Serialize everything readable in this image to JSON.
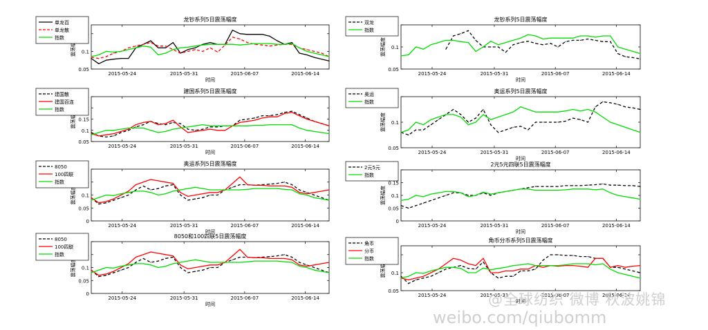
{
  "watermark": {
    "line1": "@全球纺织 微博 秋波姚锦",
    "line2": "weibo.com/qiubomm"
  },
  "chart_data": [
    {
      "type": "line",
      "title": "龙钞系列5日震荡幅度",
      "xlabel": "时间",
      "ylabel": "震荡幅度",
      "ylim": [
        0.05,
        0.175
      ],
      "yticks": [
        0.05,
        0.1,
        0.15
      ],
      "ytick_labels": [
        "0.05",
        "0.1",
        "0.15"
      ],
      "xticks": [
        "2015-05-24",
        "2015-05-31",
        "2015-06-07",
        "2015-06-14"
      ],
      "legend": "top-left-outside",
      "series": [
        {
          "name": "单龙百",
          "color": "#000000",
          "dash": "solid",
          "values": [
            0.08,
            0.065,
            0.075,
            0.078,
            0.08,
            0.08,
            0.11,
            0.12,
            0.13,
            0.11,
            0.11,
            0.125,
            0.095,
            0.105,
            0.11,
            0.12,
            0.125,
            0.12,
            0.12,
            0.16,
            0.15,
            0.148,
            0.148,
            0.148,
            0.143,
            0.13,
            0.12,
            0.125,
            0.095,
            0.09,
            0.083,
            0.078,
            0.073
          ]
        },
        {
          "name": "单龙散",
          "color": "#ff0000",
          "dash": "dashed",
          "values": [
            0.083,
            0.08,
            0.085,
            0.095,
            0.1,
            0.11,
            0.115,
            0.12,
            0.125,
            0.115,
            0.115,
            0.105,
            0.095,
            0.1,
            0.105,
            0.1,
            0.11,
            0.098,
            0.118,
            0.14,
            0.135,
            0.125,
            0.12,
            0.118,
            0.115,
            0.118,
            0.12,
            0.12,
            0.11,
            0.105,
            0.1,
            0.095,
            0.085
          ]
        },
        {
          "name": "指数",
          "color": "#00dd00",
          "dash": "solid",
          "values": [
            0.085,
            0.09,
            0.1,
            0.098,
            0.1,
            0.105,
            0.11,
            0.115,
            0.112,
            0.09,
            0.095,
            0.105,
            0.11,
            0.112,
            0.115,
            0.118,
            0.12,
            0.12,
            0.12,
            0.12,
            0.118,
            0.12,
            0.122,
            0.122,
            0.122,
            0.12,
            0.12,
            0.122,
            0.11,
            0.1,
            0.095,
            0.09,
            0.085
          ]
        }
      ]
    },
    {
      "type": "line",
      "title": "龙钞系列5日震荡幅度",
      "xlabel": "时间",
      "ylabel": "震荡幅度",
      "ylim": [
        0.05,
        0.15
      ],
      "yticks": [
        0.05,
        0.1,
        0.15
      ],
      "ytick_labels": [
        "0.05",
        "0.1",
        "0.15"
      ],
      "xticks": [
        "2015-05-24",
        "2015-05-31",
        "2015-06-07",
        "2015-06-14"
      ],
      "legend": "top-left-outside",
      "series": [
        {
          "name": "双龙",
          "color": "#000000",
          "dash": "dashed",
          "values": [
            null,
            null,
            null,
            null,
            null,
            null,
            0.095,
            0.125,
            0.13,
            0.137,
            0.115,
            0.1,
            0.1,
            0.1,
            0.088,
            0.105,
            0.11,
            0.113,
            0.108,
            0.105,
            0.108,
            0.1,
            0.112,
            0.115,
            0.115,
            0.118,
            0.115,
            0.112,
            0.112,
            0.085,
            0.078,
            0.076,
            0.073
          ]
        },
        {
          "name": "指数",
          "color": "#00dd00",
          "dash": "solid",
          "values": [
            0.08,
            0.082,
            0.1,
            0.095,
            0.105,
            0.11,
            0.115,
            0.115,
            0.112,
            0.11,
            0.09,
            0.1,
            0.113,
            0.105,
            0.11,
            0.115,
            0.12,
            0.128,
            0.125,
            0.118,
            0.12,
            0.12,
            0.12,
            0.12,
            0.125,
            0.125,
            0.122,
            0.125,
            0.125,
            0.1,
            0.095,
            0.09,
            0.085
          ]
        }
      ]
    },
    {
      "type": "line",
      "title": "建国系列5日震荡幅度",
      "xlabel": "时间",
      "ylabel": "震荡幅度",
      "ylim": [
        0.05,
        0.25
      ],
      "yticks": [
        0.05,
        0.1,
        0.15,
        0.2,
        0.25
      ],
      "ytick_labels": [
        "0.05",
        "0.1",
        "0.15",
        "0.2",
        "0.25"
      ],
      "xticks": [
        "2015-05-24",
        "2015-05-31",
        "2015-06-07",
        "2015-06-14"
      ],
      "legend": "top-left-outside",
      "series": [
        {
          "name": "建国散",
          "color": "#000000",
          "dash": "dashed",
          "values": [
            0.09,
            0.075,
            0.07,
            0.075,
            0.09,
            0.1,
            0.115,
            0.125,
            0.14,
            0.13,
            0.125,
            0.135,
            0.13,
            0.105,
            0.1,
            0.105,
            0.115,
            0.115,
            0.12,
            0.12,
            0.145,
            0.15,
            0.155,
            0.165,
            0.165,
            0.17,
            0.18,
            0.185,
            0.17,
            0.155,
            0.14,
            0.13,
            0.12
          ]
        },
        {
          "name": "建国百连",
          "color": "#ff0000",
          "dash": "solid",
          "values": [
            0.085,
            0.075,
            0.08,
            0.085,
            0.095,
            0.105,
            0.125,
            0.135,
            0.14,
            0.125,
            0.13,
            0.145,
            0.115,
            0.09,
            0.095,
            0.1,
            0.105,
            0.1,
            0.1,
            0.12,
            0.135,
            0.14,
            0.145,
            0.155,
            0.16,
            0.16,
            0.175,
            0.18,
            0.165,
            0.15,
            0.14,
            0.13,
            0.12
          ]
        },
        {
          "name": "指数",
          "color": "#00dd00",
          "dash": "solid",
          "values": [
            0.08,
            0.09,
            0.1,
            0.1,
            0.105,
            0.11,
            0.11,
            0.11,
            0.1,
            0.09,
            0.095,
            0.105,
            0.11,
            0.115,
            0.12,
            0.125,
            0.12,
            0.12,
            0.12,
            0.12,
            0.12,
            0.12,
            0.122,
            0.122,
            0.125,
            0.125,
            0.125,
            0.125,
            0.11,
            0.1,
            0.095,
            0.09,
            0.085
          ]
        }
      ]
    },
    {
      "type": "line",
      "title": "奥运系列5日震荡幅度",
      "xlabel": "时间",
      "ylabel": "震荡幅度",
      "ylim": [
        0.05,
        0.15
      ],
      "yticks": [
        0.05,
        0.1,
        0.15
      ],
      "ytick_labels": [
        "0.05",
        "0.1",
        "0.15"
      ],
      "xticks": [
        "2015-05-24",
        "2015-05-31",
        "2015-06-07",
        "2015-06-14"
      ],
      "legend": "top-left-outside",
      "series": [
        {
          "name": "奥运",
          "color": "#000000",
          "dash": "dashed",
          "values": [
            0.08,
            0.075,
            0.085,
            0.085,
            0.095,
            0.105,
            0.115,
            0.125,
            0.115,
            0.1,
            0.108,
            0.125,
            0.095,
            0.08,
            0.085,
            0.09,
            0.092,
            0.085,
            0.1,
            0.1,
            0.1,
            0.1,
            0.102,
            0.108,
            0.105,
            0.1,
            0.13,
            0.14,
            0.138,
            0.135,
            0.13,
            0.128,
            0.125
          ]
        },
        {
          "name": "指数",
          "color": "#00dd00",
          "dash": "solid",
          "values": [
            0.08,
            0.085,
            0.1,
            0.095,
            0.105,
            0.11,
            0.115,
            0.115,
            0.11,
            0.095,
            0.1,
            0.115,
            0.105,
            0.11,
            0.115,
            0.12,
            0.13,
            0.125,
            0.12,
            0.12,
            0.12,
            0.12,
            0.122,
            0.125,
            0.122,
            0.125,
            0.12,
            0.11,
            0.1,
            0.095,
            0.09,
            0.085,
            0.08
          ]
        }
      ]
    },
    {
      "type": "line",
      "title": "奥运系列5日震荡幅度",
      "xlabel": "时间",
      "ylabel": "震荡幅度",
      "ylim": [
        0.0,
        0.2
      ],
      "yticks": [
        0.0,
        0.05,
        0.1,
        0.15,
        0.2
      ],
      "ytick_labels": [
        "0",
        "0.05",
        "0.1",
        "0.15",
        "0.2"
      ],
      "xticks": [
        "2015-05-24",
        "2015-05-31",
        "2015-06-07",
        "2015-06-14"
      ],
      "legend": "top-left-outside",
      "series": [
        {
          "name": "8050",
          "color": "#000000",
          "dash": "dashed",
          "values": [
            0.09,
            0.065,
            0.07,
            0.08,
            0.09,
            0.1,
            0.12,
            0.135,
            0.12,
            0.125,
            0.135,
            0.14,
            0.1,
            0.08,
            0.085,
            0.09,
            0.1,
            0.1,
            0.12,
            0.13,
            0.14,
            0.14,
            0.138,
            0.14,
            0.142,
            0.145,
            0.15,
            0.14,
            0.12,
            0.11,
            0.1,
            0.09,
            0.08
          ]
        },
        {
          "name": "100四联",
          "color": "#ff0000",
          "dash": "solid",
          "values": [
            0.09,
            0.07,
            0.075,
            0.085,
            0.1,
            0.115,
            0.14,
            0.15,
            0.16,
            0.155,
            0.15,
            0.145,
            0.11,
            0.095,
            0.1,
            0.105,
            0.11,
            0.11,
            0.12,
            0.145,
            0.17,
            0.14,
            0.138,
            0.138,
            0.135,
            0.135,
            0.135,
            0.13,
            0.11,
            0.105,
            0.11,
            0.115,
            0.12
          ]
        },
        {
          "name": "指数",
          "color": "#00dd00",
          "dash": "solid",
          "values": [
            0.08,
            0.09,
            0.1,
            0.098,
            0.105,
            0.11,
            0.115,
            0.115,
            0.11,
            0.1,
            0.105,
            0.115,
            0.12,
            0.125,
            0.13,
            0.125,
            0.12,
            0.12,
            0.12,
            0.12,
            0.12,
            0.122,
            0.125,
            0.125,
            0.125,
            0.125,
            0.122,
            0.12,
            0.105,
            0.1,
            0.09,
            0.085,
            0.08
          ]
        }
      ]
    },
    {
      "type": "line",
      "title": "2元5元四联5日震荡幅度",
      "xlabel": "时间",
      "ylabel": "震荡幅度",
      "ylim": [
        0.0,
        0.2
      ],
      "yticks": [
        0.0,
        0.05,
        0.1,
        0.15,
        0.2
      ],
      "ytick_labels": [
        "0",
        "0.05",
        "0.1",
        "0.15",
        "0.2"
      ],
      "xticks": [
        "2015-05-24",
        "2015-05-31",
        "2015-06-07",
        "2015-06-14"
      ],
      "legend": "top-left-outside",
      "series": [
        {
          "name": "2元5元",
          "color": "#000000",
          "dash": "dashed",
          "values": [
            0.06,
            0.05,
            0.06,
            0.07,
            0.08,
            0.09,
            0.1,
            0.11,
            0.11,
            0.1,
            0.1,
            0.11,
            0.1,
            0.11,
            0.115,
            0.12,
            0.125,
            0.13,
            0.135,
            0.135,
            0.135,
            0.135,
            0.138,
            0.138,
            0.138,
            0.14,
            0.142,
            0.145,
            0.14,
            0.14,
            0.138,
            0.138,
            0.135
          ]
        },
        {
          "name": "指数",
          "color": "#00dd00",
          "dash": "solid",
          "values": [
            0.08,
            0.085,
            0.1,
            0.095,
            0.105,
            0.11,
            0.115,
            0.115,
            0.11,
            0.095,
            0.1,
            0.113,
            0.105,
            0.11,
            0.115,
            0.12,
            0.125,
            0.125,
            0.12,
            0.12,
            0.12,
            0.12,
            0.122,
            0.125,
            0.125,
            0.125,
            0.122,
            0.125,
            0.11,
            0.1,
            0.095,
            0.09,
            0.085
          ]
        }
      ]
    },
    {
      "type": "line",
      "title": "8050和100四联5日震荡幅度",
      "xlabel": "时间",
      "ylabel": "震荡幅度",
      "ylim": [
        0.0,
        0.2
      ],
      "yticks": [
        0.0,
        0.05,
        0.1,
        0.15,
        0.2
      ],
      "ytick_labels": [
        "0",
        "0.05",
        "0.1",
        "0.15",
        "0.2"
      ],
      "xticks": [
        "2015-05-24",
        "2015-05-31",
        "2015-06-07",
        "2015-06-14"
      ],
      "legend": "top-left-outside",
      "series": [
        {
          "name": "8050",
          "color": "#000000",
          "dash": "dashed",
          "values": [
            0.09,
            0.065,
            0.07,
            0.08,
            0.09,
            0.1,
            0.12,
            0.135,
            0.12,
            0.125,
            0.135,
            0.14,
            0.1,
            0.08,
            0.085,
            0.09,
            0.1,
            0.1,
            0.12,
            0.13,
            0.14,
            0.14,
            0.138,
            0.14,
            0.142,
            0.145,
            0.15,
            0.14,
            0.12,
            0.11,
            0.1,
            0.09,
            0.08
          ]
        },
        {
          "name": "100四联",
          "color": "#ff0000",
          "dash": "solid",
          "values": [
            0.09,
            0.07,
            0.075,
            0.085,
            0.1,
            0.115,
            0.14,
            0.15,
            0.16,
            0.155,
            0.15,
            0.145,
            0.11,
            0.095,
            0.1,
            0.105,
            0.11,
            0.11,
            0.12,
            0.145,
            0.17,
            0.14,
            0.138,
            0.138,
            0.135,
            0.135,
            0.135,
            0.13,
            0.11,
            0.105,
            0.11,
            0.115,
            0.12
          ]
        },
        {
          "name": "指数",
          "color": "#00dd00",
          "dash": "solid",
          "values": [
            0.08,
            0.09,
            0.1,
            0.098,
            0.105,
            0.11,
            0.115,
            0.115,
            0.11,
            0.1,
            0.105,
            0.115,
            0.12,
            0.125,
            0.13,
            0.125,
            0.12,
            0.12,
            0.12,
            0.12,
            0.12,
            0.122,
            0.125,
            0.125,
            0.125,
            0.125,
            0.122,
            0.12,
            0.105,
            0.1,
            0.09,
            0.085,
            0.08
          ]
        }
      ]
    },
    {
      "type": "line",
      "title": "角币分币系列5日震荡幅度",
      "xlabel": "时间",
      "ylabel": "震荡幅度",
      "ylim": [
        0.05,
        0.175
      ],
      "yticks": [
        0.05,
        0.1,
        0.15
      ],
      "ytick_labels": [
        "0.05",
        "0.1",
        "0.15"
      ],
      "xticks": [
        "2015-05-24",
        "2015-05-31",
        "2015-06-07",
        "2015-06-14"
      ],
      "legend": "top-left-outside",
      "series": [
        {
          "name": "角币",
          "color": "#000000",
          "dash": "dashed",
          "values": [
            0.09,
            0.07,
            0.08,
            0.085,
            0.09,
            0.1,
            0.11,
            0.115,
            0.12,
            0.112,
            0.11,
            0.13,
            0.1,
            0.085,
            0.09,
            0.09,
            0.105,
            0.105,
            0.11,
            0.135,
            0.15,
            0.15,
            0.148,
            0.148,
            0.145,
            0.145,
            0.14,
            0.14,
            0.115,
            0.115,
            0.11,
            0.105,
            0.1
          ]
        },
        {
          "name": "分币",
          "color": "#ff0000",
          "dash": "solid",
          "values": [
            0.085,
            0.08,
            0.085,
            0.09,
            0.1,
            0.11,
            0.125,
            0.14,
            0.135,
            0.125,
            0.12,
            0.14,
            0.1,
            0.1,
            0.105,
            0.105,
            0.11,
            0.11,
            0.12,
            0.115,
            0.12,
            0.118,
            0.12,
            0.12,
            0.118,
            0.115,
            0.14,
            0.14,
            0.115,
            0.12,
            0.115,
            0.118,
            0.12
          ]
        },
        {
          "name": "指数",
          "color": "#00dd00",
          "dash": "solid",
          "values": [
            0.085,
            0.09,
            0.1,
            0.098,
            0.105,
            0.11,
            0.115,
            0.115,
            0.112,
            0.1,
            0.1,
            0.113,
            0.108,
            0.112,
            0.115,
            0.12,
            0.122,
            0.125,
            0.12,
            0.12,
            0.12,
            0.12,
            0.122,
            0.125,
            0.125,
            0.125,
            0.122,
            0.125,
            0.11,
            0.1,
            0.095,
            0.09,
            0.085
          ]
        }
      ]
    }
  ]
}
